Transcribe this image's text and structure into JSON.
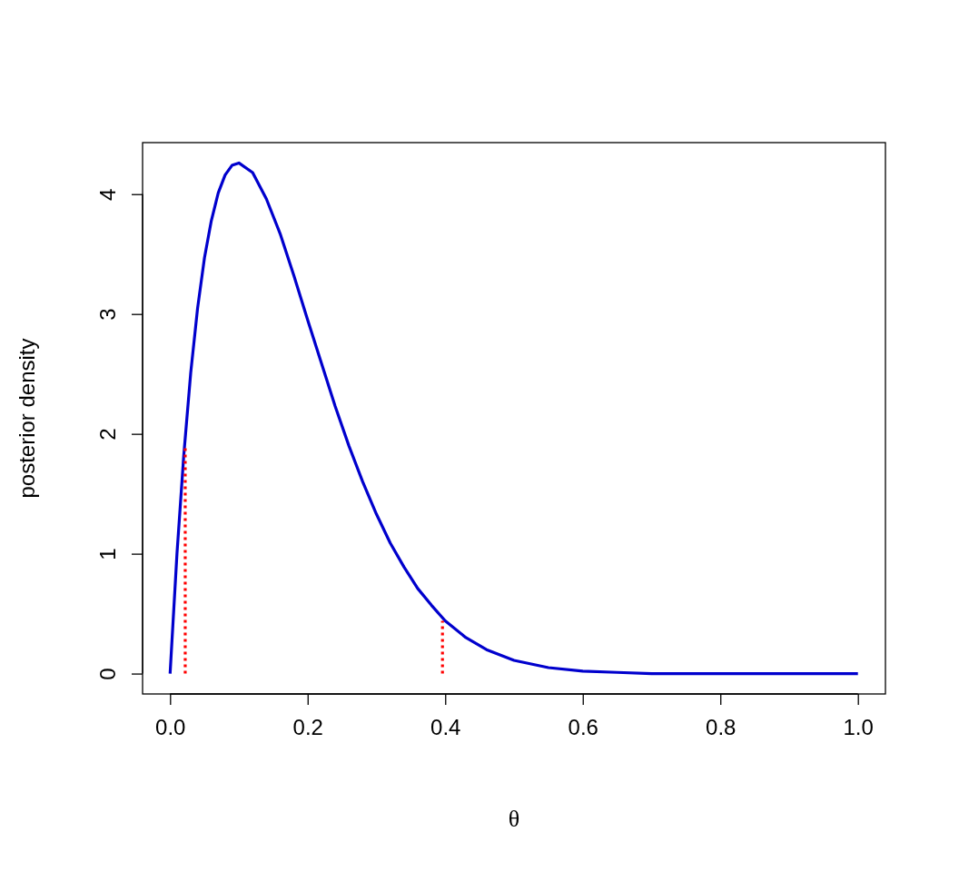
{
  "chart_data": {
    "type": "line",
    "xlabel": "θ",
    "ylabel": "posterior density",
    "xlim": [
      -0.04,
      1.04
    ],
    "ylim": [
      -0.17,
      4.43
    ],
    "xticks": [
      {
        "value": 0,
        "label": "0.0"
      },
      0.2,
      0.4,
      0.6,
      0.8,
      {
        "value": 1,
        "label": "1.0"
      }
    ],
    "yticks": [
      0,
      1,
      2,
      3,
      4
    ],
    "grid": false,
    "series": [
      {
        "color": "#0000cd",
        "line_style": "solid",
        "x": [
          0,
          0.01,
          0.02,
          0.03,
          0.04,
          0.05,
          0.06,
          0.07,
          0.08,
          0.09,
          0.1,
          0.12,
          0.14,
          0.16,
          0.18,
          0.2,
          0.22,
          0.24,
          0.26,
          0.28,
          0.3,
          0.32,
          0.34,
          0.36,
          0.38,
          0.4,
          0.43,
          0.46,
          0.5,
          0.55,
          0.6,
          0.65,
          0.7,
          0.8,
          0.9,
          1
        ],
        "values": [
          0,
          1.0,
          1.83,
          2.51,
          3.05,
          3.47,
          3.78,
          4.01,
          4.16,
          4.24,
          4.26,
          4.18,
          3.96,
          3.67,
          3.32,
          2.95,
          2.59,
          2.23,
          1.9,
          1.6,
          1.33,
          1.09,
          0.89,
          0.71,
          0.57,
          0.44,
          0.3,
          0.2,
          0.11,
          0.05,
          0.02,
          0.01,
          0,
          0,
          0,
          0
        ]
      },
      {
        "color": "#ff0000",
        "line_style": "dotted",
        "x": [
          0.022,
          0.022
        ],
        "values": [
          0,
          1.88
        ]
      },
      {
        "color": "#ff0000",
        "line_style": "dotted",
        "x": [
          0.396,
          0.396
        ],
        "values": [
          0,
          0.44
        ]
      }
    ]
  }
}
